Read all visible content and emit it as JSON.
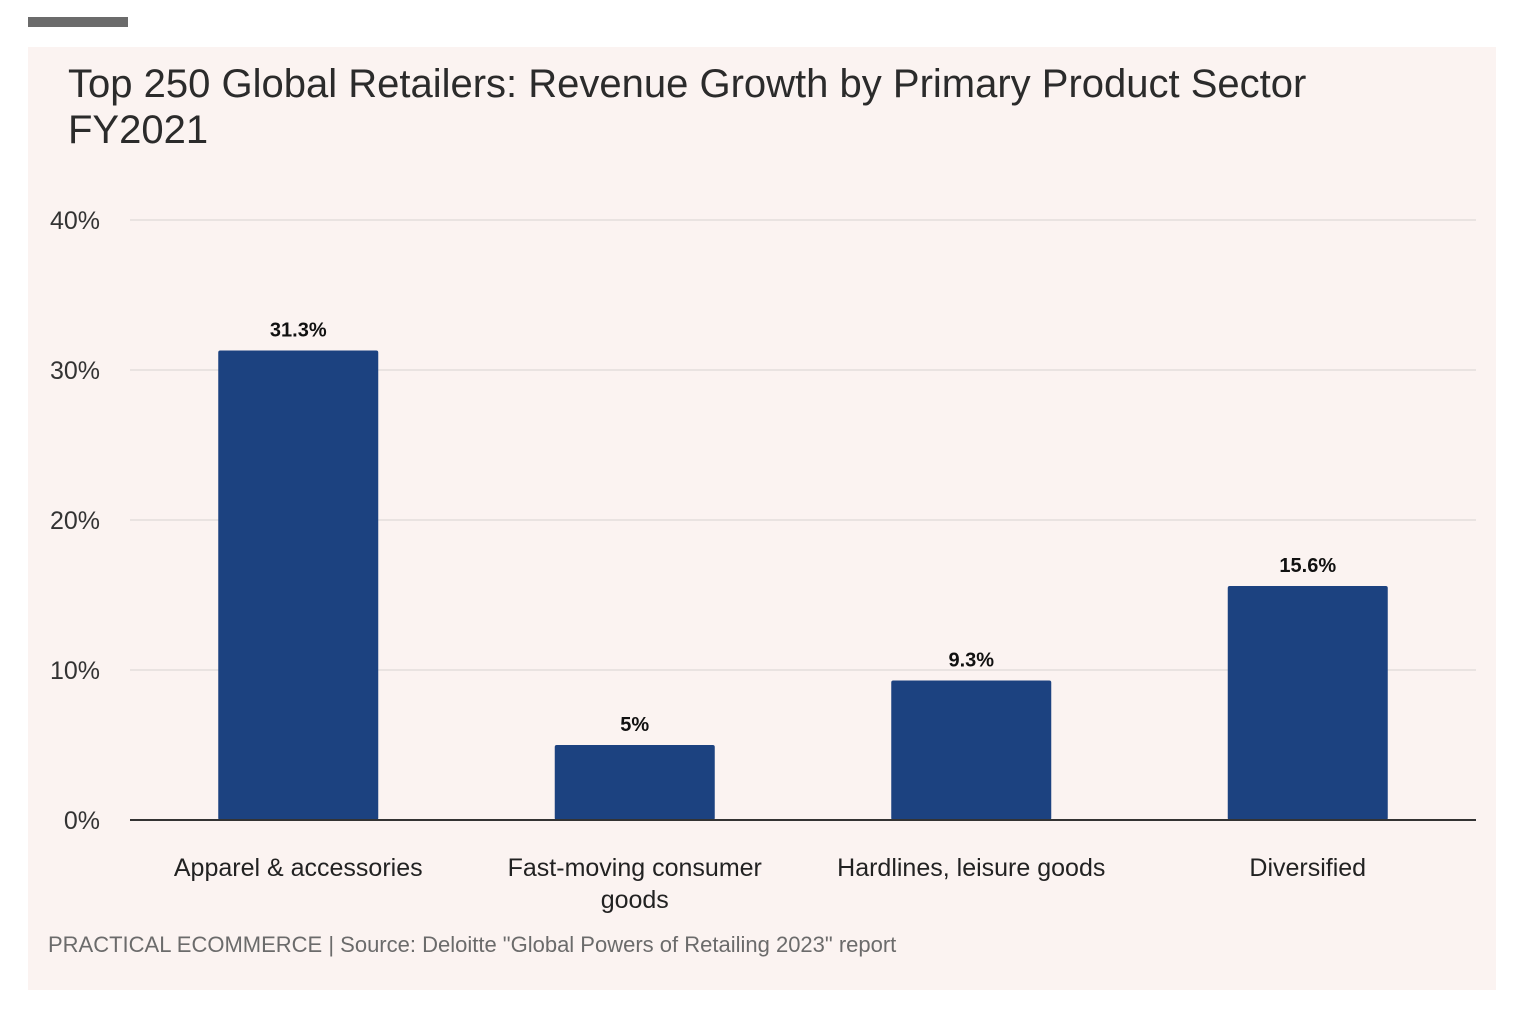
{
  "chart_data": {
    "type": "bar",
    "title": "Top 250 Global Retailers: Revenue Growth by Primary Product Sector FY2021",
    "categories": [
      [
        "Apparel & accessories"
      ],
      [
        "Fast-moving consumer",
        "goods"
      ],
      [
        "Hardlines, leisure goods"
      ],
      [
        "Diversified"
      ]
    ],
    "values": [
      31.3,
      5,
      9.3,
      15.6
    ],
    "value_labels": [
      "31.3%",
      "5%",
      "9.3%",
      "15.6%"
    ],
    "yticks": [
      0,
      10,
      20,
      30,
      40
    ],
    "ytick_labels": [
      "0%",
      "10%",
      "20%",
      "30%",
      "40%"
    ],
    "ylim": [
      0,
      40
    ],
    "xlabel": "",
    "ylabel": "",
    "grid": true,
    "bar_color": "#1c4280"
  },
  "footer": "PRACTICAL ECOMMERCE | Source: Deloitte \"Global Powers of Retailing 2023\" report"
}
